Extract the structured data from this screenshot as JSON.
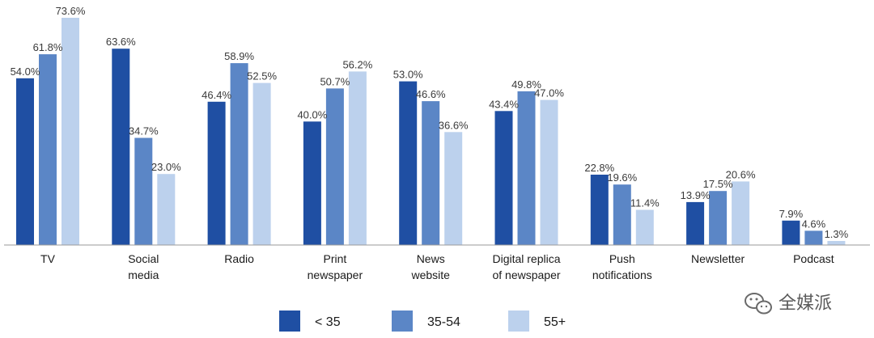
{
  "chart_data": {
    "type": "bar",
    "categories": [
      [
        "TV"
      ],
      [
        "Social",
        "media"
      ],
      [
        "Radio"
      ],
      [
        "Print",
        "newspaper"
      ],
      [
        "News",
        "website"
      ],
      [
        "Digital replica",
        "of newspaper"
      ],
      [
        "Push",
        "notifications"
      ],
      [
        "Newsletter"
      ],
      [
        "Podcast"
      ]
    ],
    "series": [
      {
        "name": "< 35",
        "color": "#1f4fa3",
        "values": [
          54.0,
          63.6,
          46.4,
          40.0,
          53.0,
          43.4,
          22.8,
          13.9,
          7.9
        ],
        "labels": [
          "54.0%",
          "63.6%",
          "46.4%",
          "40.0%",
          "53.0%",
          "43.4%",
          "22.8%",
          "13.9%",
          "7.9%"
        ]
      },
      {
        "name": "35-54",
        "color": "#5b86c6",
        "values": [
          61.8,
          34.7,
          58.9,
          50.7,
          46.6,
          49.8,
          19.6,
          17.5,
          4.6
        ],
        "labels": [
          "61.8%",
          "34.7%",
          "58.9%",
          "50.7%",
          "46.6%",
          "49.8%",
          "19.6%",
          "17.5%",
          "4.6%"
        ]
      },
      {
        "name": "55+",
        "color": "#bcd1ed",
        "values": [
          73.6,
          23.0,
          52.5,
          56.2,
          36.6,
          47.0,
          11.4,
          20.6,
          1.3
        ],
        "labels": [
          "73.6%",
          "23.0%",
          "52.5%",
          "56.2%",
          "36.6%",
          "47.0%",
          "11.4%",
          "20.6%",
          "1.3%"
        ]
      }
    ],
    "ylim": [
      0,
      80
    ],
    "grid": false,
    "legend": "bottom"
  },
  "watermark": {
    "text": "全媒派",
    "icon": "wechat-icon"
  }
}
